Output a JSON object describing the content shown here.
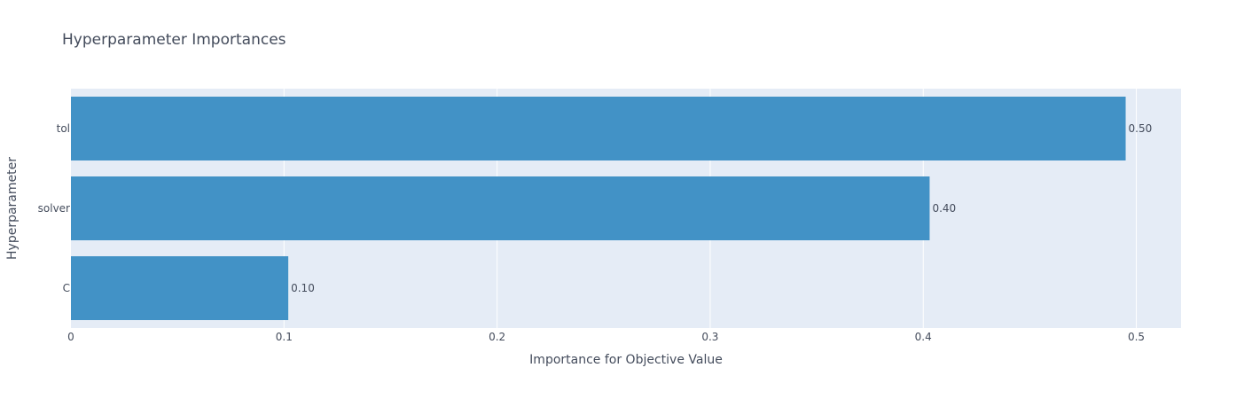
{
  "chart_data": {
    "type": "bar",
    "orientation": "horizontal",
    "title": "Hyperparameter Importances",
    "xlabel": "Importance for Objective Value",
    "ylabel": "Hyperparameter",
    "categories": [
      "tol",
      "solver",
      "C"
    ],
    "values": [
      0.495,
      0.403,
      0.102
    ],
    "value_labels": [
      "0.50",
      "0.40",
      "0.10"
    ],
    "xlim": [
      0,
      0.521
    ],
    "xticks": [
      0,
      0.1,
      0.2,
      0.3,
      0.4,
      0.5
    ],
    "xtick_labels": [
      "0",
      "0.1",
      "0.2",
      "0.3",
      "0.4",
      "0.5"
    ],
    "grid": true,
    "colors": {
      "bar": "#4292c6",
      "plot_bg": "#e5ecf6",
      "grid": "#ffffff",
      "text": "#444c5c"
    }
  }
}
